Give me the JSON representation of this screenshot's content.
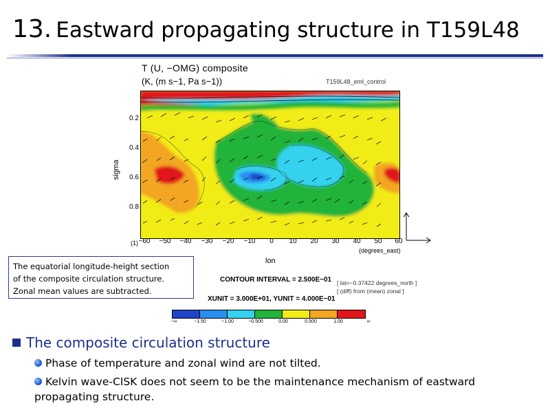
{
  "slide": {
    "number": "13.",
    "title": "Eastward propagating structure in T159L48"
  },
  "figure": {
    "title": "T (U, −OMG) composite",
    "units": "(K, (m s−1, Pa s−1))",
    "experiment": "T159L48_eml_control",
    "panel_index": "(1)",
    "ylabel": "sigma",
    "xlabel": "lon",
    "x_unit_label": "(degrees_east)",
    "y_ticks": [
      "0.2",
      "0.4",
      "0.6",
      "0.8"
    ],
    "x_ticks": [
      "−60",
      "−50",
      "−40",
      "−30",
      "−20",
      "−10",
      "0",
      "10",
      "20",
      "30",
      "40",
      "50",
      "60"
    ],
    "contour_interval": "CONTOUR INTERVAL = 2.500E−01",
    "lat_note": "[ lat=−0.37422 degrees_north ]",
    "diff_note": "[ (diff) from (mean) zonal ]",
    "unit_note": "XUNIT = 3.000E+01, YUNIT = 4.000E−01",
    "colorbar": {
      "labels": [
        "−∞",
        "−1.50",
        "−1.00",
        "−0.500",
        "0.00",
        "0.500",
        "1.00",
        "∞"
      ],
      "colors": [
        "#1f44c8",
        "#2a8ef0",
        "#34d2f0",
        "#22b33a",
        "#f2ec19",
        "#f2a622",
        "#e0161c"
      ]
    }
  },
  "caption": {
    "lines": [
      "The equatorial longitude-height section",
      "of the composite circulation structure.",
      "Zonal mean values are subtracted."
    ]
  },
  "bullets": {
    "heading": "The composite circulation structure",
    "items": [
      "Phase of temperature and zonal wind are not tilted.",
      "Kelvin wave-CISK does not seem to be the maintenance mechanism of eastward propagating structure."
    ]
  }
}
